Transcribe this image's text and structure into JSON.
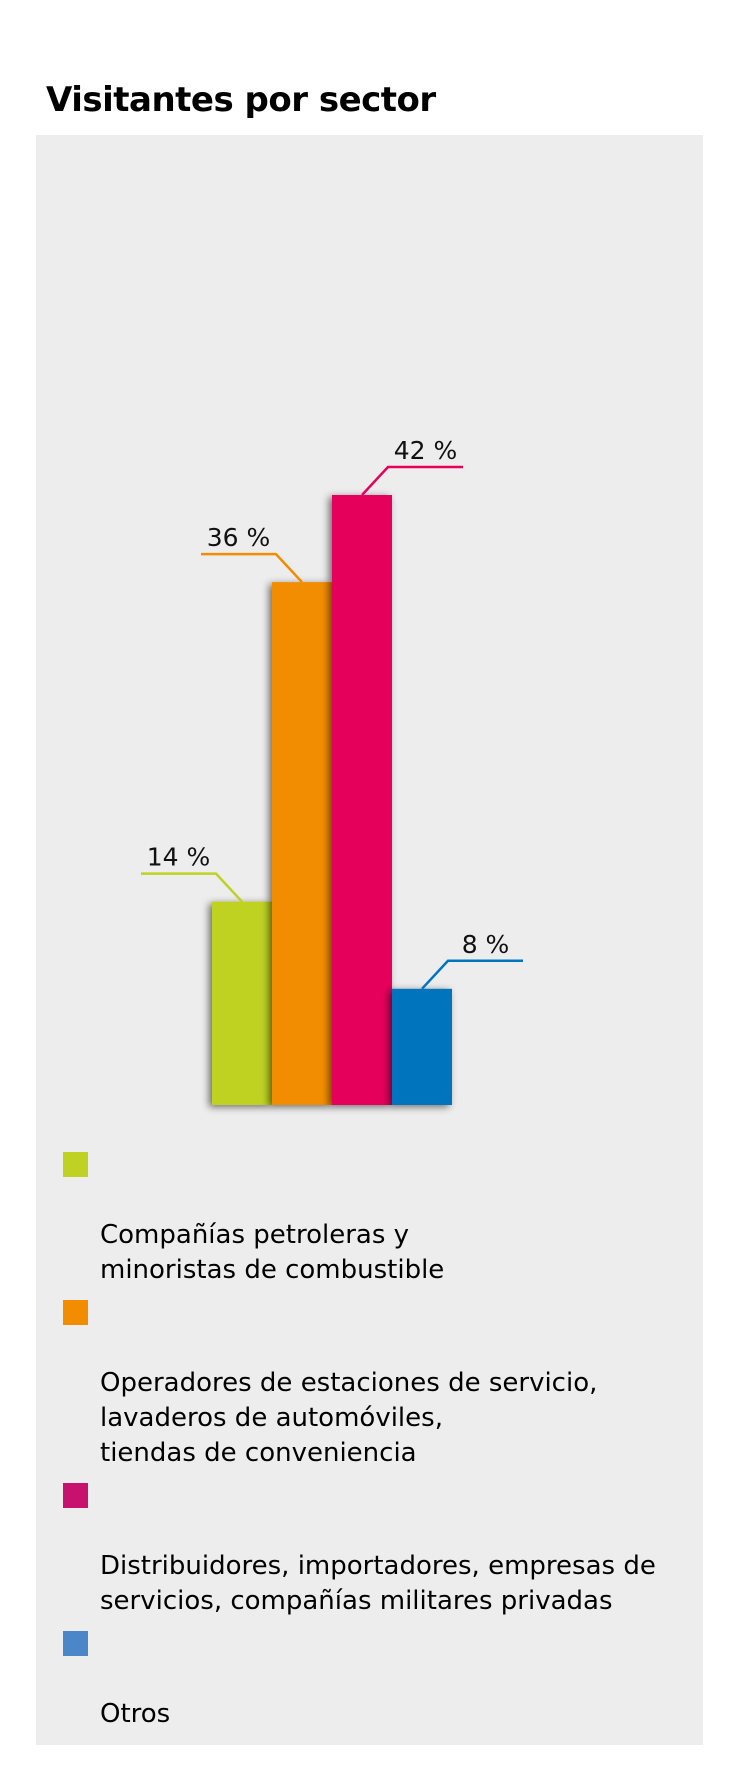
{
  "title": "Visitantes por sector",
  "chart_data": {
    "type": "bar",
    "title": "Visitantes por sector",
    "ylim": [
      0,
      42
    ],
    "grid": false,
    "legend_position": "bottom",
    "categories": [
      "Compañías petroleras y minoristas de combustible",
      "Operadores de estaciones de servicio, lavaderos de automóviles, tiendas de conveniencia",
      "Distribuidores, importadores, empresas de servicios, compañías militares privadas",
      "Otros"
    ],
    "values": [
      14,
      36,
      42,
      8
    ],
    "value_labels": [
      "14 %",
      "36 %",
      "42 %",
      "8 %"
    ],
    "colors": [
      "#bfd224",
      "#f28c00",
      "#e5005c",
      "#0075be"
    ],
    "legend_colors": [
      "#bfd224",
      "#f28c00",
      "#c8106e",
      "#4a86c8"
    ]
  },
  "legend": [
    {
      "label": "Compañías petroleras y\nminoristas de combustible",
      "color": "#bfd224"
    },
    {
      "label": "Operadores de estaciones de servicio,\nlavaderos de automóviles,\ntiendas de conveniencia",
      "color": "#f28c00"
    },
    {
      "label": "Distribuidores, importadores, empresas de\nservicios, compañías militares privadas",
      "color": "#c8106e"
    },
    {
      "label": "Otros",
      "color": "#4a86c8"
    }
  ]
}
